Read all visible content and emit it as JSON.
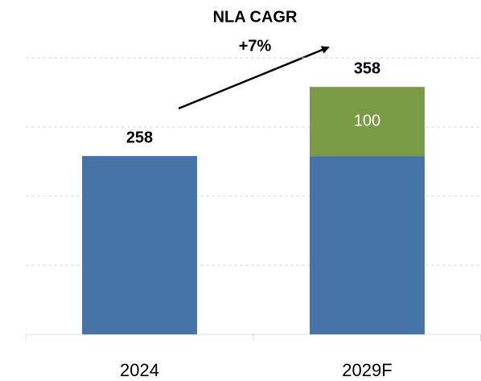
{
  "chart_data": {
    "type": "stacked_bar",
    "categories": [
      "2024",
      "2029F"
    ],
    "series": [
      {
        "color": "#4673a8",
        "values": [
          258,
          258
        ]
      },
      {
        "color": "#7b9a45",
        "values": [
          null,
          100
        ]
      }
    ],
    "totals": [
      258,
      358
    ],
    "annotation": [
      "NLA CAGR",
      "+7%"
    ],
    "ylim": [
      0,
      400
    ],
    "yticks": [
      0,
      100,
      200,
      300,
      400
    ],
    "grid": true
  }
}
